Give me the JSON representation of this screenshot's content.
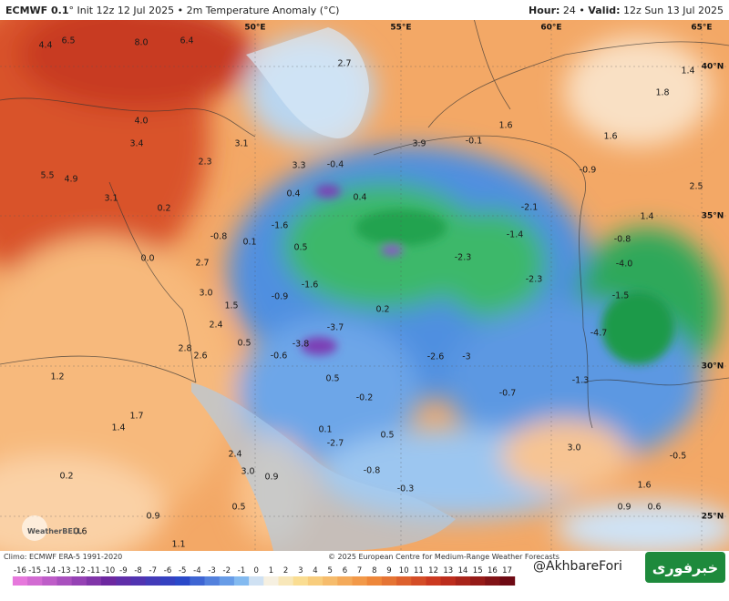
{
  "header": {
    "model": "ECMWF 0.1",
    "info": "° Init 12z 12 Jul 2025 • 2m Temperature Anomaly (°C)",
    "hour_label": "Hour:",
    "hour": "24 •",
    "valid_label": "Valid:",
    "valid": "12z Sun 13 Jul 2025"
  },
  "map": {
    "grid_labels": [
      "50°E",
      "55°E",
      "60°E",
      "65°E",
      "40°N",
      "35°N",
      "30°N",
      "25°N"
    ],
    "value_labels": [
      "6.5",
      "8.0",
      "6.4",
      "4.4",
      "4.0",
      "3.4",
      "3.1",
      "5.5",
      "4.9",
      "3.1",
      "0.2",
      "2.3",
      "3.3",
      "-0.4",
      "3.9",
      "1.6",
      "-0.1",
      "1.6",
      "2.7",
      "1.4",
      "1.8",
      "-0.9",
      "2.5",
      "1.4",
      "-0.8",
      "-4.0",
      "-1.5",
      "-4.7",
      "-2.1",
      "-1.4",
      "-2.3",
      "-2.3",
      "-1.6",
      "-1.6",
      "0.5",
      "0.4",
      "0.4",
      "-0.8",
      "0.1",
      "0.0",
      "2.7",
      "3.0",
      "1.5",
      "2.4",
      "-0.9",
      "0.2",
      "-3.7",
      "-3.8",
      "0.5",
      "2.8",
      "2.6",
      "-0.6",
      "0.5",
      "-0.2",
      "-2.6",
      "-3",
      "-0.7",
      "-1.3",
      "1.2",
      "1.7",
      "1.4",
      "0.1",
      "0.5",
      "2.4",
      "-2.7",
      "0.2",
      "3.0",
      "0.9",
      "-0.8",
      "3.0",
      "-0.5",
      "1.6",
      "0.5",
      "-0.3",
      "0.9",
      "0.9",
      "0.6",
      "1.1",
      "0.6"
    ]
  },
  "colorbar": {
    "labels": [
      -16,
      -15,
      -14,
      -13,
      -12,
      -11,
      -10,
      -9,
      -8,
      -7,
      -6,
      -5,
      -4,
      -3,
      -2,
      -1,
      0,
      1,
      2,
      3,
      4,
      5,
      6,
      7,
      8,
      9,
      10,
      11,
      12,
      13,
      14,
      15,
      16,
      17
    ]
  },
  "footer": {
    "climo": "Climo: ECMWF ERA-5 1991-2020",
    "copyright": "© 2025 European Centre for Medium-Range Weather Forecasts",
    "logo": "WeatherBELL",
    "handle": "@AkhbareFori",
    "brand": "خبرفوری"
  }
}
